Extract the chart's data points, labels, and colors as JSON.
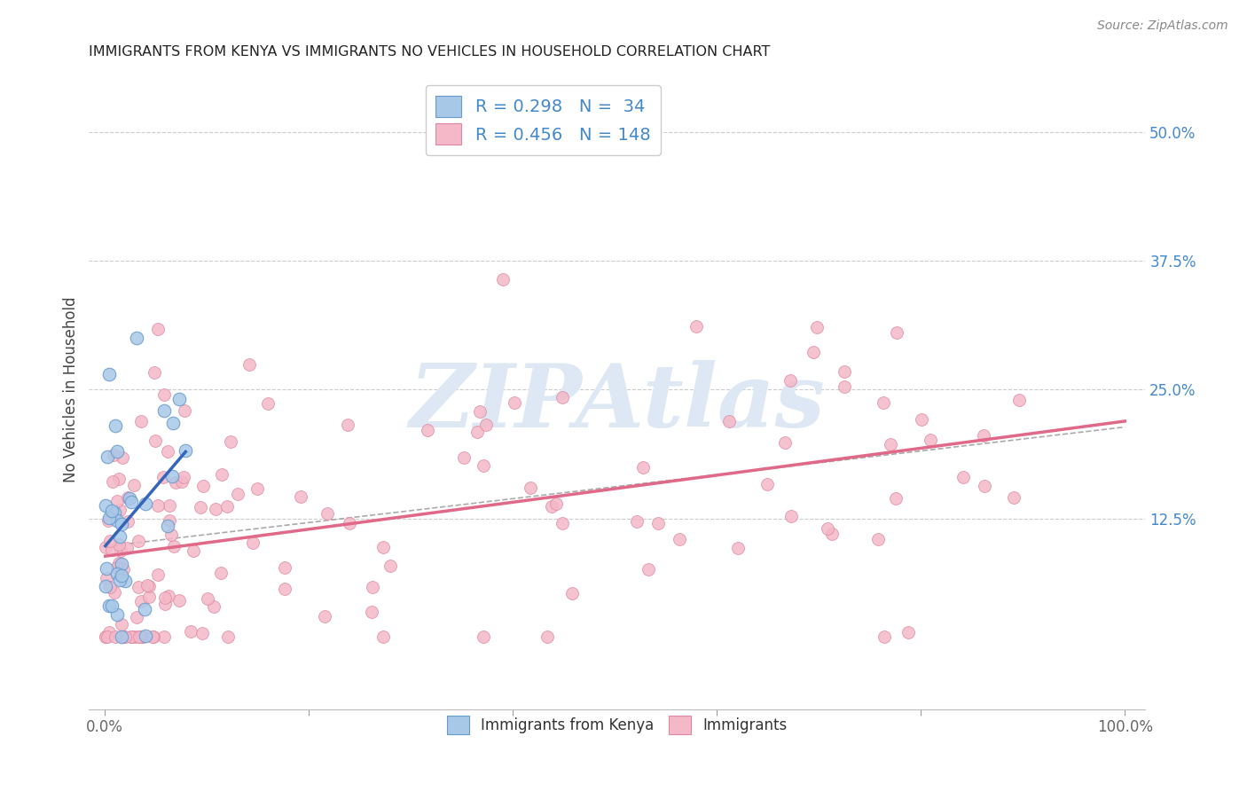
{
  "title": "IMMIGRANTS FROM KENYA VS IMMIGRANTS NO VEHICLES IN HOUSEHOLD CORRELATION CHART",
  "source_text": "Source: ZipAtlas.com",
  "ylabel": "No Vehicles in Household",
  "ytick_vals": [
    0.125,
    0.25,
    0.375,
    0.5
  ],
  "ytick_labels": [
    "12.5%",
    "25.0%",
    "37.5%",
    "50.0%"
  ],
  "xtick_vals": [
    0.0,
    0.2,
    0.4,
    0.6,
    0.8,
    1.0
  ],
  "xtick_labels": [
    "0.0%",
    "",
    "",
    "",
    "",
    "100.0%"
  ],
  "xlim": [
    -0.015,
    1.02
  ],
  "ylim": [
    -0.06,
    0.56
  ],
  "legend_labels": [
    "Immigrants from Kenya",
    "Immigrants"
  ],
  "legend_R": [
    0.298,
    0.456
  ],
  "legend_N": [
    34,
    148
  ],
  "blue_color": "#a8c8e8",
  "blue_edge_color": "#6699cc",
  "blue_line_color": "#3366bb",
  "pink_color": "#f4b8c8",
  "pink_edge_color": "#e088a0",
  "pink_line_color": "#e06888",
  "dashed_line_color": "#aaaaaa",
  "grid_color": "#cccccc",
  "watermark_text": "ZIPAtlas",
  "watermark_color": "#dde8f4",
  "title_color": "#222222",
  "source_color": "#888888",
  "ytick_color": "#4488cc",
  "xtick_color": "#666666",
  "ylabel_color": "#444444"
}
